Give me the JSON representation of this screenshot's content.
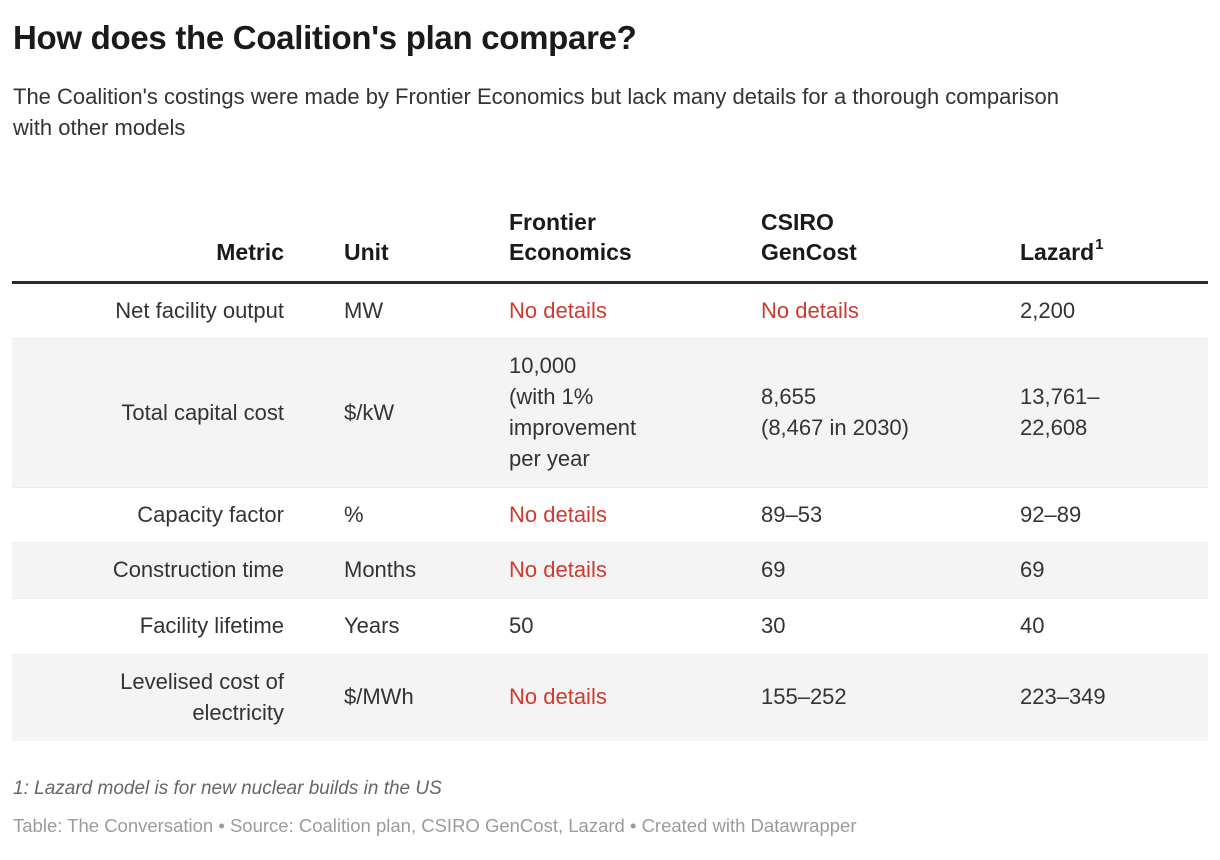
{
  "colors": {
    "negative_text": "#d0392e",
    "header_rule": "#2b2b2b",
    "row_stripe": "#f4f4f4",
    "body_text": "#333333",
    "heading_text": "#1a1a1a",
    "footnote_text": "#666666",
    "attribution_text": "#9b9b9b"
  },
  "header": {
    "title": "How does the Coalition's plan compare?",
    "subtitle": "The Coalition's costings were made by Frontier Economics but lack many details for a thorough comparison with other models"
  },
  "table": {
    "columns": [
      {
        "label": "Metric",
        "align": "right"
      },
      {
        "label": "Unit",
        "align": "left"
      },
      {
        "label": "Frontier\nEconomics",
        "align": "left"
      },
      {
        "label": "CSIRO\nGenCost",
        "align": "left"
      },
      {
        "label": "Lazard",
        "superscript": "1",
        "align": "left"
      }
    ],
    "rows": [
      {
        "cells": [
          {
            "text": "Net facility output"
          },
          {
            "text": "MW"
          },
          {
            "text": "No details",
            "red": true
          },
          {
            "text": "No details",
            "red": true
          },
          {
            "text": "2,200"
          }
        ]
      },
      {
        "cells": [
          {
            "text": "Total capital cost"
          },
          {
            "text": "$/kW"
          },
          {
            "text": "10,000\n(with 1%\nimprovement\nper year"
          },
          {
            "text": "8,655\n(8,467 in 2030)"
          },
          {
            "text": "13,761–\n22,608"
          }
        ]
      },
      {
        "cells": [
          {
            "text": "Capacity factor"
          },
          {
            "text": "%"
          },
          {
            "text": "No details",
            "red": true
          },
          {
            "text": "89–53"
          },
          {
            "text": "92–89"
          }
        ]
      },
      {
        "cells": [
          {
            "text": "Construction time"
          },
          {
            "text": "Months"
          },
          {
            "text": "No details",
            "red": true
          },
          {
            "text": "69"
          },
          {
            "text": "69"
          }
        ]
      },
      {
        "cells": [
          {
            "text": "Facility lifetime"
          },
          {
            "text": "Years"
          },
          {
            "text": "50"
          },
          {
            "text": "30"
          },
          {
            "text": "40"
          }
        ]
      },
      {
        "cells": [
          {
            "text": "Levelised cost of\nelectricity"
          },
          {
            "text": "$/MWh"
          },
          {
            "text": "No details",
            "red": true
          },
          {
            "text": "155–252"
          },
          {
            "text": "223–349"
          }
        ]
      }
    ]
  },
  "footnote": "1: Lazard model is for new nuclear builds in the US",
  "attribution": "Table: The Conversation • Source: Coalition plan, CSIRO GenCost, Lazard • Created with Datawrapper",
  "chart_data": {
    "type": "table",
    "title": "How does the Coalition's plan compare?",
    "subtitle": "The Coalition's costings were made by Frontier Economics but lack many details for a thorough comparison with other models",
    "columns": [
      "Metric",
      "Unit",
      "Frontier Economics",
      "CSIRO GenCost",
      "Lazard¹"
    ],
    "rows": [
      [
        "Net facility output",
        "MW",
        "No details",
        "No details",
        "2,200"
      ],
      [
        "Total capital cost",
        "$/kW",
        "10,000 (with 1% improvement per year",
        "8,655 (8,467 in 2030)",
        "13,761–22,608"
      ],
      [
        "Capacity factor",
        "%",
        "No details",
        "89–53",
        "92–89"
      ],
      [
        "Construction time",
        "Months",
        "No details",
        "69",
        "69"
      ],
      [
        "Facility lifetime",
        "Years",
        "50",
        "30",
        "40"
      ],
      [
        "Levelised cost of electricity",
        "$/MWh",
        "No details",
        "155–252",
        "223–349"
      ]
    ],
    "no_details_color": "#d0392e",
    "footnote": "1: Lazard model is for new nuclear builds in the US",
    "source": "Table: The Conversation • Source: Coalition plan, CSIRO GenCost, Lazard • Created with Datawrapper"
  }
}
